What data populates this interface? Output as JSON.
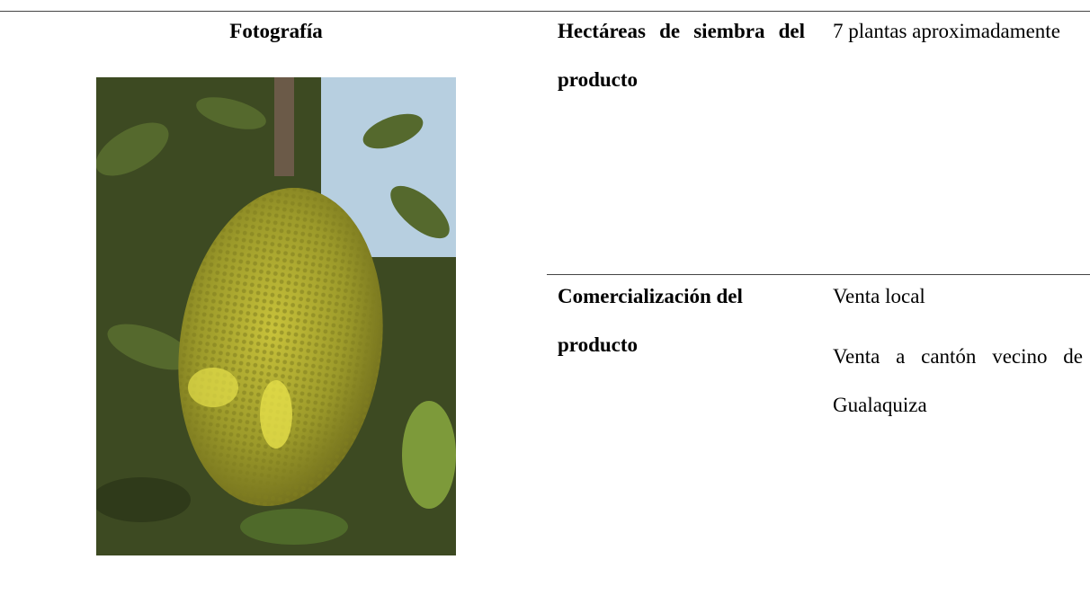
{
  "table": {
    "header": "Fotografía",
    "rows": [
      {
        "label": "Hectáreas de siembra del producto",
        "values": [
          "7 plantas aproximadamente"
        ]
      },
      {
        "label": "Comercialización del producto",
        "values": [
          "Venta local",
          "Venta a cantón vecino de Gualaquiza"
        ]
      }
    ]
  }
}
